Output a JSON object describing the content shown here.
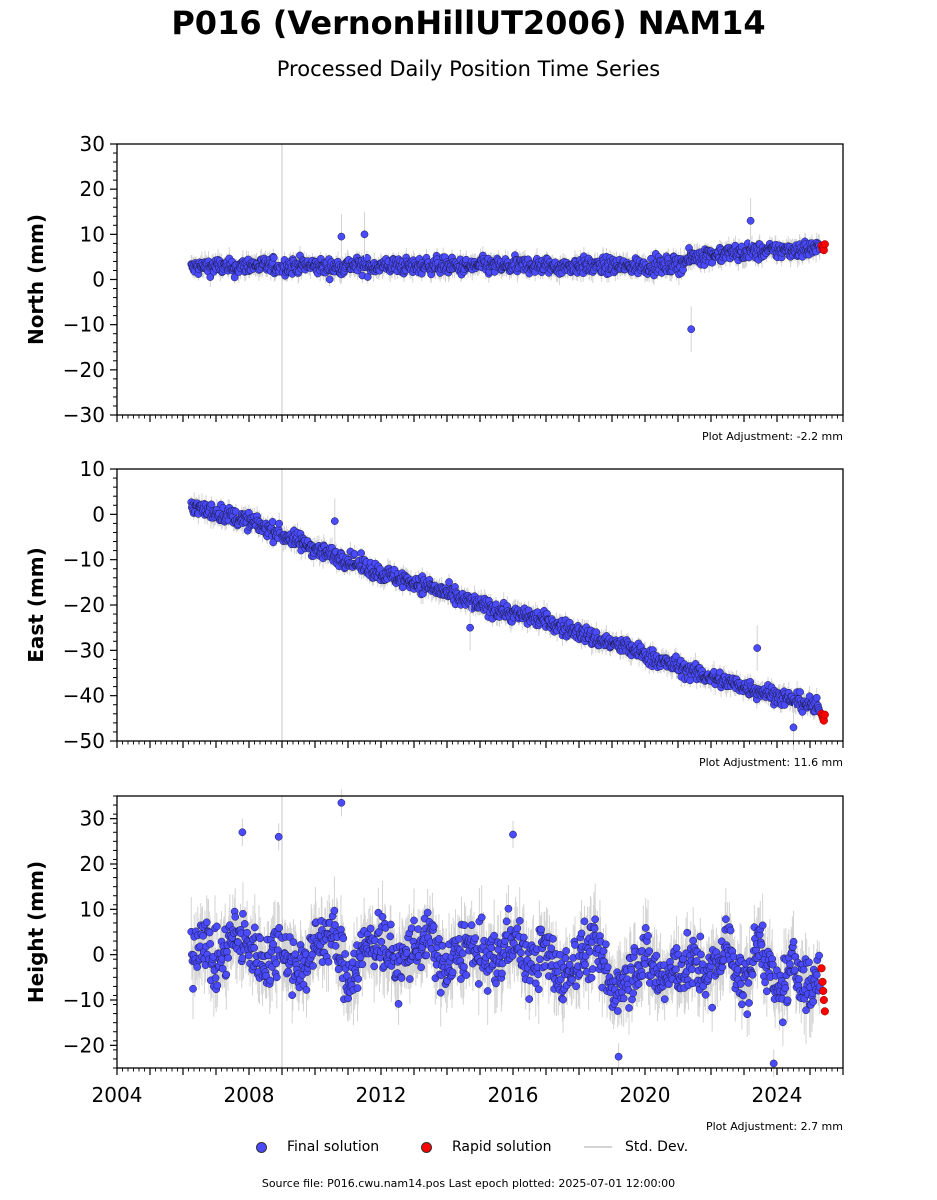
{
  "title": "P016 (VernonHillUT2006) NAM14",
  "subtitle": "Processed Daily Position Time Series",
  "legend": {
    "final": "Final solution",
    "rapid": "Rapid solution",
    "std": "Std. Dev."
  },
  "source": "Source file: P016.cwu.nam14.pos  Last epoch plotted: 2025-07-01 12:00:00",
  "colors": {
    "final": "#4a4aff",
    "rapid": "#ff0000",
    "stddev": "#d3d3d3"
  },
  "chart_data": [
    {
      "type": "scatter",
      "ylabel": "North (mm)",
      "ylim": [
        -30,
        30
      ],
      "yticks": [
        -30,
        -20,
        -10,
        0,
        10,
        20,
        30
      ],
      "xlim": [
        2004,
        2026
      ],
      "adjustment": "Plot Adjustment: -2.2 mm",
      "series": [
        {
          "name": "Final solution",
          "x": [
            2006.3,
            2006.6,
            2007.0,
            2007.5,
            2008.0,
            2008.5,
            2009.0,
            2009.5,
            2010.0,
            2010.5,
            2011.0,
            2011.5,
            2012.0,
            2012.5,
            2013.0,
            2013.5,
            2014.0,
            2014.5,
            2015.0,
            2015.5,
            2016.0,
            2016.5,
            2017.0,
            2017.5,
            2018.0,
            2018.5,
            2019.0,
            2019.5,
            2020.0,
            2020.5,
            2021.0,
            2021.5,
            2022.0,
            2022.5,
            2023.0,
            2023.5,
            2024.0,
            2024.5,
            2025.0,
            2025.3
          ],
          "y": [
            2.5,
            2.8,
            3.0,
            2.5,
            3.2,
            3.0,
            2.8,
            3.1,
            3.0,
            2.6,
            3.2,
            2.9,
            3.0,
            3.1,
            2.8,
            3.2,
            3.0,
            2.7,
            3.1,
            3.0,
            2.9,
            3.2,
            3.0,
            2.8,
            3.1,
            2.9,
            3.0,
            2.8,
            3.1,
            3.0,
            3.3,
            5.0,
            5.5,
            5.8,
            6.0,
            6.2,
            6.4,
            6.6,
            6.8,
            7.0
          ]
        },
        {
          "name": "Rapid solution",
          "x": [
            2025.35,
            2025.38,
            2025.4,
            2025.42,
            2025.45
          ],
          "y": [
            7.5,
            6.8,
            7.2,
            6.5,
            7.8
          ]
        }
      ],
      "outliers": [
        {
          "x": 2021.4,
          "y": -11.0
        },
        {
          "x": 2023.2,
          "y": 13.0
        },
        {
          "x": 2010.8,
          "y": 9.5
        },
        {
          "x": 2011.5,
          "y": 10.0
        }
      ]
    },
    {
      "type": "scatter",
      "ylabel": "East (mm)",
      "ylim": [
        -50,
        10
      ],
      "yticks": [
        -50,
        -40,
        -30,
        -20,
        -10,
        0,
        10
      ],
      "xlim": [
        2004,
        2026
      ],
      "adjustment": "Plot Adjustment: 11.6 mm",
      "series": [
        {
          "name": "Final solution",
          "x": [
            2006.3,
            2006.6,
            2007.0,
            2007.5,
            2008.0,
            2008.5,
            2009.0,
            2009.5,
            2010.0,
            2010.5,
            2011.0,
            2011.5,
            2012.0,
            2012.5,
            2013.0,
            2013.5,
            2014.0,
            2014.5,
            2015.0,
            2015.5,
            2016.0,
            2016.5,
            2017.0,
            2017.5,
            2018.0,
            2018.5,
            2019.0,
            2019.5,
            2020.0,
            2020.5,
            2021.0,
            2021.5,
            2022.0,
            2022.5,
            2023.0,
            2023.5,
            2024.0,
            2024.5,
            2025.0,
            2025.3
          ],
          "y": [
            2.0,
            1.0,
            0.5,
            -0.5,
            -1.5,
            -3.0,
            -4.5,
            -6.0,
            -7.5,
            -9.0,
            -10.0,
            -11.5,
            -13.0,
            -14.0,
            -15.0,
            -16.0,
            -17.5,
            -19.0,
            -20.0,
            -21.0,
            -22.0,
            -22.5,
            -23.5,
            -25.0,
            -26.0,
            -27.5,
            -28.5,
            -29.5,
            -31.0,
            -32.5,
            -33.5,
            -35.0,
            -36.0,
            -37.0,
            -38.0,
            -39.0,
            -40.0,
            -41.0,
            -42.0,
            -43.0
          ]
        },
        {
          "name": "Rapid solution",
          "x": [
            2025.35,
            2025.38,
            2025.4,
            2025.42,
            2025.45
          ],
          "y": [
            -44.0,
            -44.5,
            -45.0,
            -45.5,
            -44.2
          ]
        }
      ],
      "outliers": [
        {
          "x": 2023.4,
          "y": -29.5
        },
        {
          "x": 2024.5,
          "y": -47.0
        },
        {
          "x": 2014.7,
          "y": -25.0
        },
        {
          "x": 2010.6,
          "y": -1.5
        }
      ]
    },
    {
      "type": "scatter",
      "ylabel": "Height (mm)",
      "ylim": [
        -25,
        35
      ],
      "yticks": [
        -20,
        -10,
        0,
        10,
        20,
        30
      ],
      "xlim": [
        2004,
        2026
      ],
      "xticks": [
        2004,
        2008,
        2012,
        2016,
        2020,
        2024
      ],
      "adjustment": "Plot Adjustment: 2.7 mm",
      "series": [
        {
          "name": "Final solution",
          "x": [
            2006.3,
            2006.6,
            2007.0,
            2007.5,
            2008.0,
            2008.5,
            2009.0,
            2009.5,
            2010.0,
            2010.5,
            2011.0,
            2011.5,
            2012.0,
            2012.5,
            2013.0,
            2013.5,
            2014.0,
            2014.5,
            2015.0,
            2015.5,
            2016.0,
            2016.5,
            2017.0,
            2017.5,
            2018.0,
            2018.5,
            2019.0,
            2019.5,
            2020.0,
            2020.5,
            2021.0,
            2021.5,
            2022.0,
            2022.5,
            2023.0,
            2023.5,
            2024.0,
            2024.5,
            2025.0,
            2025.3
          ],
          "y": [
            0.0,
            5.0,
            -3.0,
            4.0,
            2.0,
            -2.0,
            3.0,
            -4.0,
            2.0,
            5.0,
            -5.0,
            1.0,
            4.0,
            -3.0,
            2.0,
            3.0,
            -4.0,
            2.0,
            0.0,
            -2.0,
            5.0,
            -3.0,
            1.0,
            -6.0,
            0.0,
            2.0,
            -8.0,
            -4.0,
            0.0,
            -6.0,
            -3.0,
            -2.0,
            -5.0,
            3.0,
            -8.0,
            4.0,
            -10.0,
            -2.0,
            -8.0,
            -5.0
          ]
        },
        {
          "name": "Rapid solution",
          "x": [
            2025.35,
            2025.38,
            2025.4,
            2025.42,
            2025.45
          ],
          "y": [
            -3.0,
            -6.0,
            -8.0,
            -10.0,
            -12.5
          ]
        }
      ],
      "outliers": [
        {
          "x": 2010.8,
          "y": 33.5
        },
        {
          "x": 2007.8,
          "y": 27.0
        },
        {
          "x": 2016.0,
          "y": 26.5
        },
        {
          "x": 2008.9,
          "y": 26.0
        },
        {
          "x": 2023.9,
          "y": -24.0
        },
        {
          "x": 2019.2,
          "y": -22.5
        }
      ]
    }
  ]
}
